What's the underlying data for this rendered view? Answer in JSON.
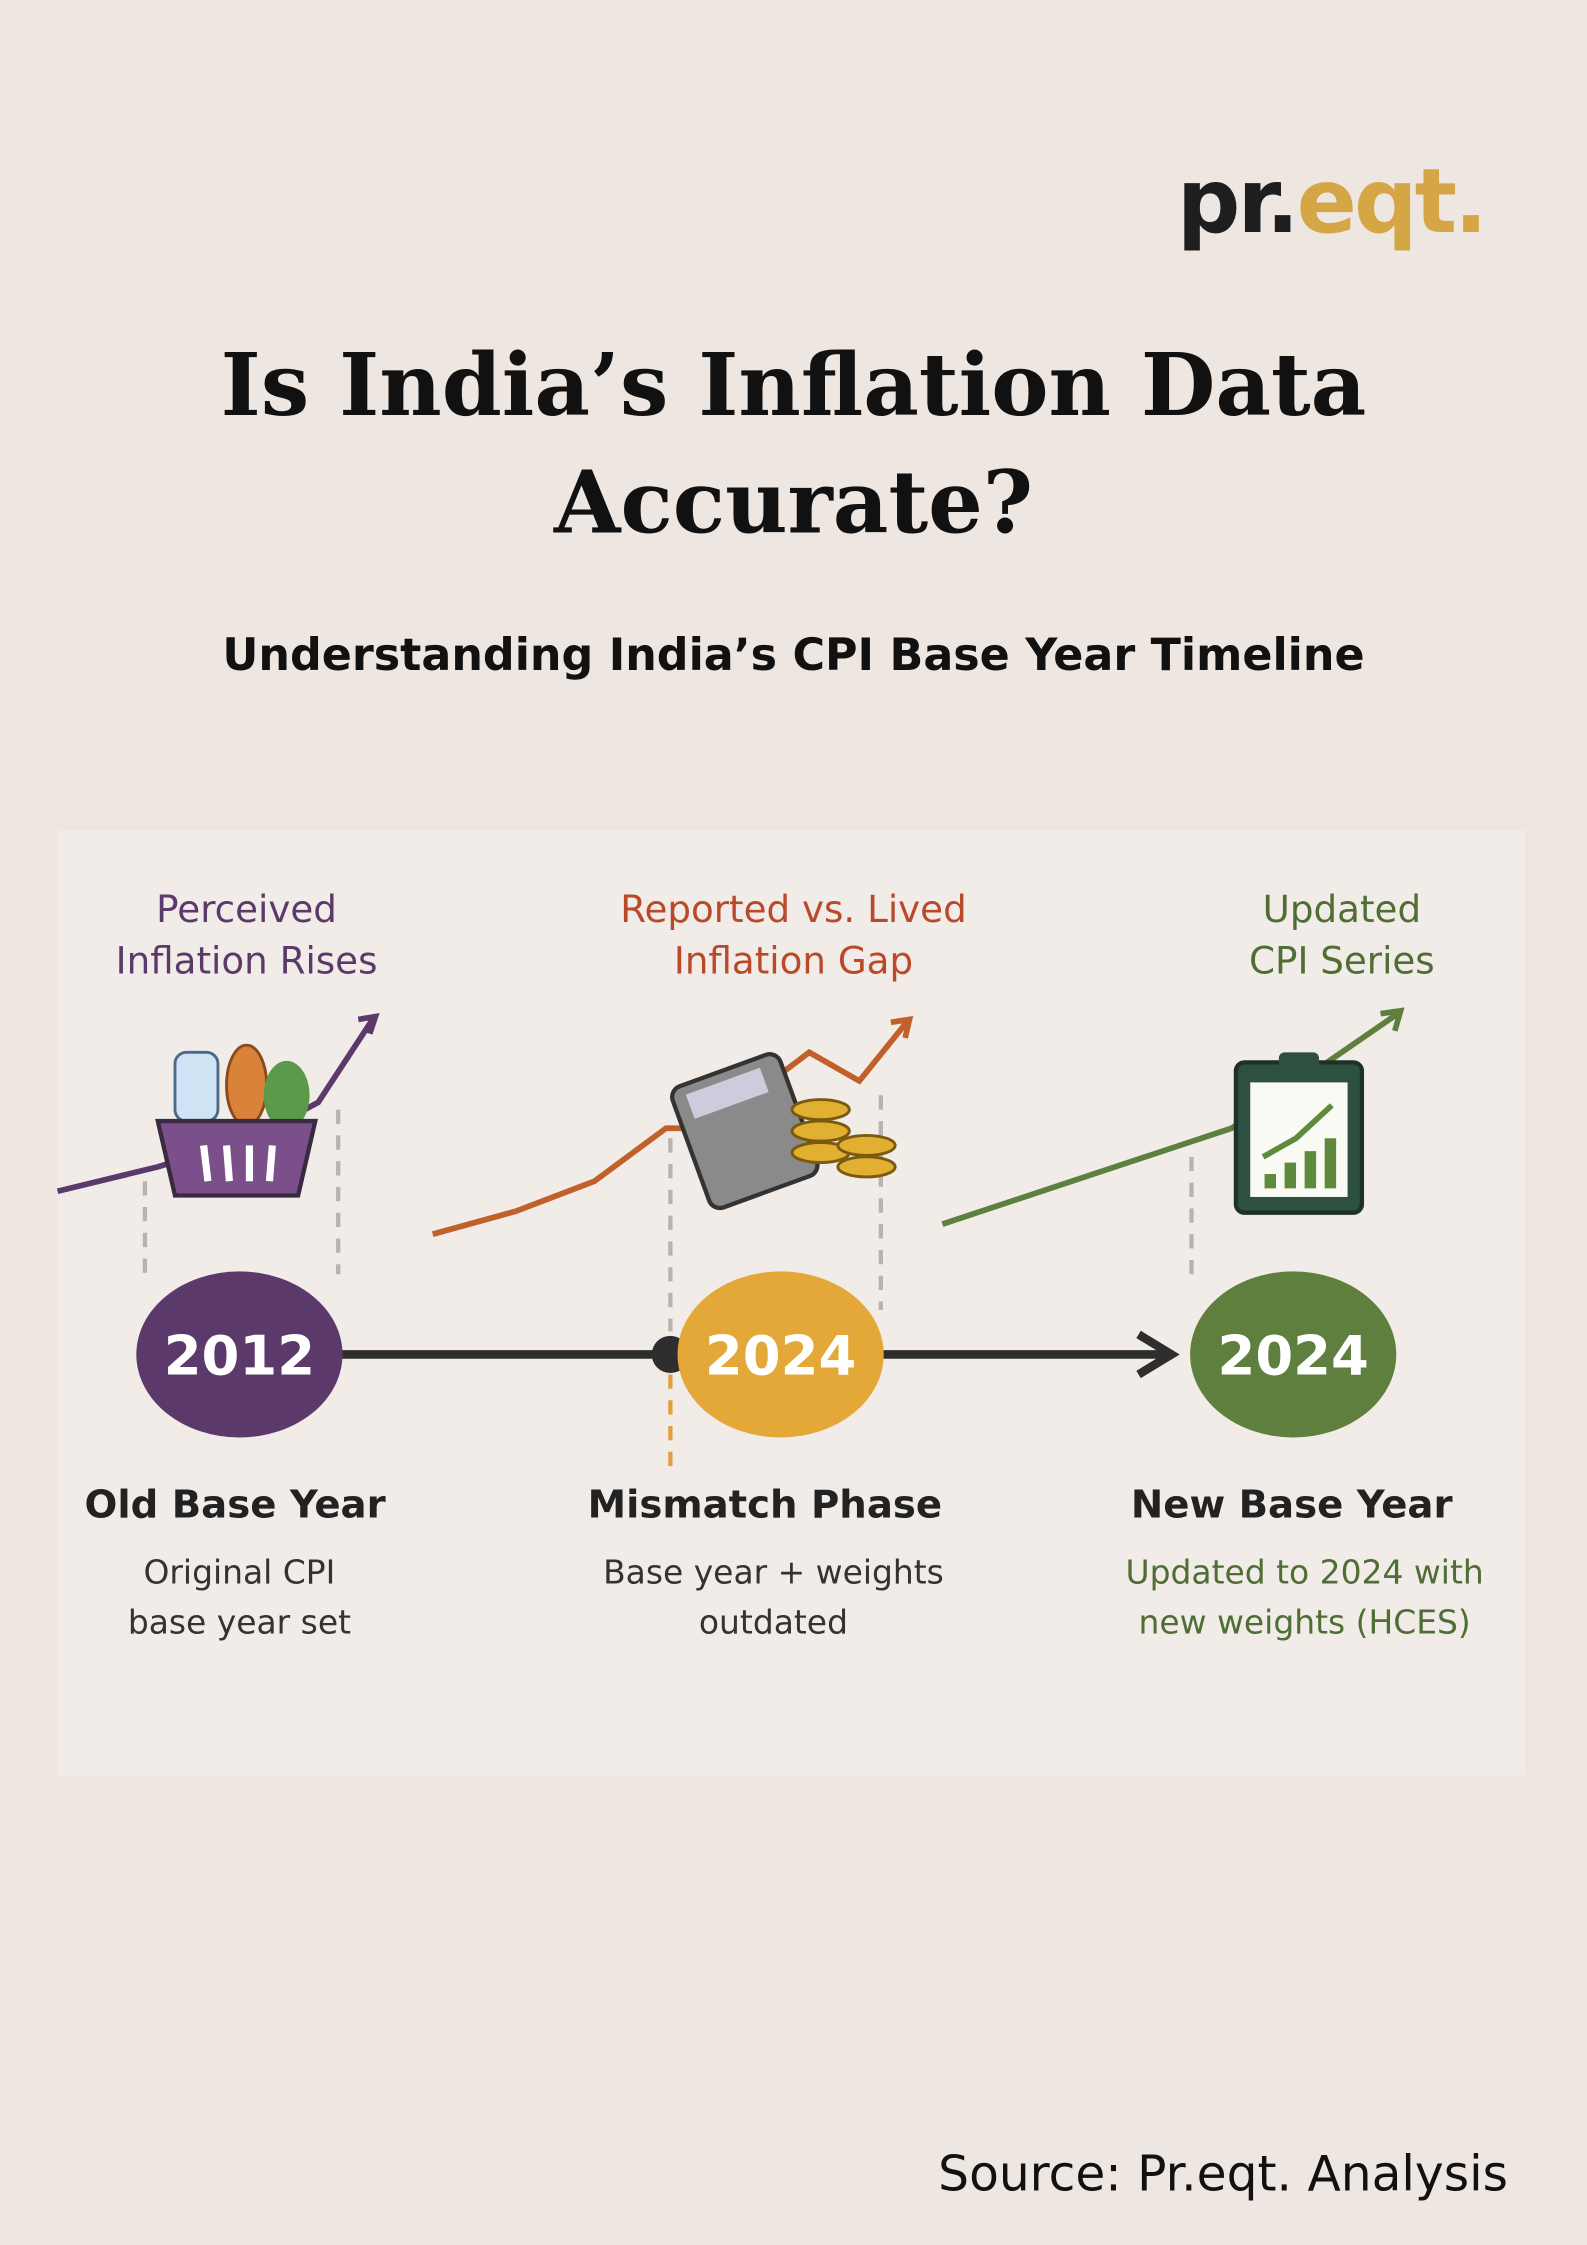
{
  "logo": {
    "dark": "pr.",
    "gold": "eqt."
  },
  "title": {
    "lines": [
      "Is India’s Inflation Data",
      "Accurate?"
    ]
  },
  "subtitle": "Understanding India’s CPI Base Year Timeline",
  "stages": [
    {
      "trend_label": [
        "Perceived",
        "Inflation Rises"
      ],
      "year": "2012",
      "heading": "Old Base Year",
      "description": [
        "Original CPI",
        "base year set"
      ]
    },
    {
      "trend_label": [
        "Reported vs. Lived",
        "Inflation Gap"
      ],
      "year": "2024",
      "heading": "Mismatch Phase",
      "description": [
        "Base year + weights",
        "outdated"
      ]
    },
    {
      "trend_label": [
        "Updated",
        "CPI Series"
      ],
      "year": "2024",
      "heading": "New Base Year",
      "description": [
        "Updated to 2024 with",
        "new weights (HCES)"
      ]
    }
  ],
  "source": "Source: Pr.eqt. Analysis"
}
